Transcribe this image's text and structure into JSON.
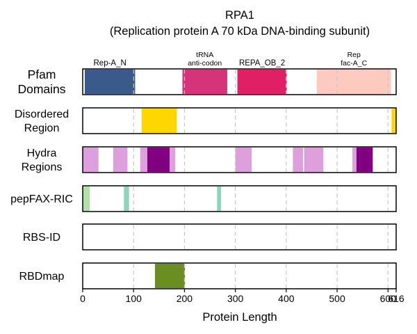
{
  "chart_data": {
    "type": "bar",
    "title": "RPA1",
    "subtitle": "(Replication protein A 70 kDa DNA-binding subunit)",
    "xlabel": "Protein Length",
    "xlim": [
      0,
      616
    ],
    "xticks": [
      0,
      100,
      200,
      300,
      400,
      500,
      600,
      616
    ],
    "gridlines": [
      100,
      200,
      300,
      400,
      500,
      600
    ],
    "tracks": [
      {
        "label": [
          "Pfam",
          "Domains"
        ],
        "segments": [
          {
            "start": 4,
            "end": 103,
            "color": "#3a5a8c",
            "label": [
              "Rep-A_N"
            ]
          },
          {
            "start": 196,
            "end": 284,
            "color": "#d6347a",
            "label": [
              "tRNA",
              "anti-codon"
            ]
          },
          {
            "start": 304,
            "end": 401,
            "color": "#e01f65",
            "label": [
              "REPA_OB_2"
            ]
          },
          {
            "start": 460,
            "end": 606,
            "color": "#fdcac0",
            "label": [
              "Rep",
              "fac-A_C"
            ]
          }
        ]
      },
      {
        "label": [
          "Disordered",
          "Region"
        ],
        "segments": [
          {
            "start": 116,
            "end": 185,
            "color": "#ffd700"
          },
          {
            "start": 607,
            "end": 616,
            "color": "#ffd700"
          }
        ]
      },
      {
        "label": [
          "Hydra",
          "Regions"
        ],
        "segments": [
          {
            "start": 0,
            "end": 31,
            "color": "#dda0dd"
          },
          {
            "start": 60,
            "end": 88,
            "color": "#dda0dd"
          },
          {
            "start": 113,
            "end": 127,
            "color": "#dda0dd"
          },
          {
            "start": 127,
            "end": 171,
            "color": "#800080"
          },
          {
            "start": 171,
            "end": 182,
            "color": "#dda0dd"
          },
          {
            "start": 300,
            "end": 332,
            "color": "#dda0dd"
          },
          {
            "start": 413,
            "end": 433,
            "color": "#dda0dd"
          },
          {
            "start": 435,
            "end": 473,
            "color": "#dda0dd"
          },
          {
            "start": 530,
            "end": 538,
            "color": "#dda0dd"
          },
          {
            "start": 538,
            "end": 570,
            "color": "#800080"
          }
        ]
      },
      {
        "label": [
          "pepFAX-RIC"
        ],
        "segments": [
          {
            "start": 0,
            "end": 14,
            "color": "#b2e0a8"
          },
          {
            "start": 81,
            "end": 91,
            "color": "#8fd4bb"
          },
          {
            "start": 264,
            "end": 272,
            "color": "#8fd4bb"
          }
        ]
      },
      {
        "label": [
          "RBS-ID"
        ],
        "segments": []
      },
      {
        "label": [
          "RBDmap"
        ],
        "segments": [
          {
            "start": 142,
            "end": 201,
            "color": "#6b8e23"
          }
        ]
      }
    ]
  }
}
